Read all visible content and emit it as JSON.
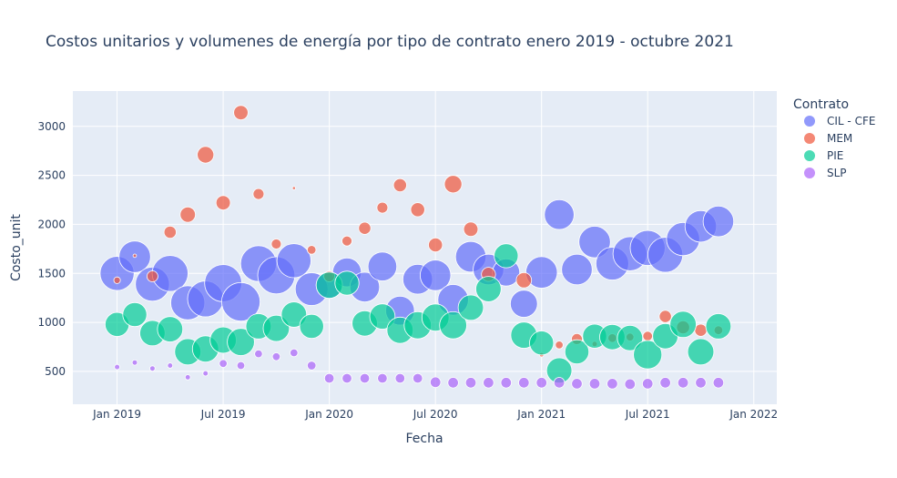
{
  "chart_data": {
    "type": "scatter",
    "title": "Costos unitarios y volumenes de energía por tipo de contrato enero 2019 - octubre 2021",
    "xlabel": "Fecha",
    "ylabel": "Costo_unit",
    "legend_title": "Contrato",
    "legend_position": "top-right",
    "grid": true,
    "x_start": "2019-01",
    "xlim_months": [
      -2.5,
      37.3
    ],
    "ylim": [
      165,
      3360
    ],
    "x_ticks": [
      {
        "label": "Jan 2019",
        "month": 0
      },
      {
        "label": "Jul 2019",
        "month": 6
      },
      {
        "label": "Jan 2020",
        "month": 12
      },
      {
        "label": "Jul 2020",
        "month": 18
      },
      {
        "label": "Jan 2021",
        "month": 24
      },
      {
        "label": "Jul 2021",
        "month": 30
      },
      {
        "label": "Jan 2022",
        "month": 36
      }
    ],
    "y_ticks": [
      500,
      1000,
      1500,
      2000,
      2500,
      3000
    ],
    "y_tick_labels": [
      "500",
      "1000",
      "1500",
      "2000",
      "2500",
      "3000"
    ],
    "size_note": "bubble size = volume (relative 0-1)",
    "series": [
      {
        "name": "CIL - CFE",
        "color": "#636efa",
        "months": [
          0,
          1,
          2,
          3,
          4,
          5,
          6,
          7,
          8,
          9,
          10,
          11,
          12,
          13,
          14,
          15,
          16,
          17,
          18,
          19,
          20,
          21,
          22,
          23,
          24,
          25,
          26,
          27,
          28,
          29,
          30,
          31,
          32,
          33,
          34
        ],
        "values": [
          1500,
          1670,
          1390,
          1500,
          1200,
          1240,
          1400,
          1210,
          1600,
          1480,
          1630,
          1340,
          1380,
          1510,
          1360,
          1570,
          1120,
          1440,
          1480,
          1230,
          1670,
          1540,
          1510,
          1190,
          1510,
          2100,
          1540,
          1820,
          1600,
          1700,
          1760,
          1690,
          1850,
          1980,
          2030
        ],
        "sizes": [
          0.78,
          0.72,
          0.78,
          0.82,
          0.78,
          0.82,
          0.85,
          0.88,
          0.82,
          0.85,
          0.78,
          0.75,
          0.6,
          0.66,
          0.68,
          0.66,
          0.66,
          0.68,
          0.7,
          0.7,
          0.7,
          0.7,
          0.62,
          0.62,
          0.72,
          0.68,
          0.7,
          0.72,
          0.75,
          0.78,
          0.8,
          0.8,
          0.76,
          0.72,
          0.7
        ]
      },
      {
        "name": "MEM",
        "color": "#ef553b",
        "months": [
          0,
          1,
          2,
          3,
          4,
          5,
          6,
          7,
          8,
          9,
          10,
          11,
          12,
          13,
          14,
          15,
          16,
          17,
          18,
          19,
          20,
          21,
          23,
          24,
          25,
          26,
          27,
          28,
          29,
          30,
          31,
          32,
          33,
          34
        ],
        "values": [
          1430,
          1680,
          1470,
          1920,
          2100,
          2710,
          2220,
          3140,
          2310,
          1800,
          2370,
          1740,
          1470,
          1830,
          1960,
          2170,
          2400,
          2150,
          1790,
          2410,
          1950,
          1490,
          1430,
          670,
          770,
          830,
          780,
          840,
          850,
          860,
          1060,
          950,
          920,
          920
        ],
        "sizes": [
          0.15,
          0.08,
          0.25,
          0.28,
          0.35,
          0.38,
          0.33,
          0.33,
          0.25,
          0.23,
          0.07,
          0.2,
          0.25,
          0.23,
          0.28,
          0.25,
          0.3,
          0.32,
          0.32,
          0.4,
          0.33,
          0.32,
          0.35,
          0.1,
          0.18,
          0.25,
          0.12,
          0.2,
          0.18,
          0.22,
          0.28,
          0.3,
          0.28,
          0.2
        ],
        "inner_dots": true
      },
      {
        "name": "PIE",
        "color": "#00cc96",
        "months": [
          0,
          1,
          2,
          3,
          4,
          5,
          6,
          7,
          8,
          9,
          10,
          11,
          12,
          13,
          14,
          15,
          16,
          17,
          18,
          19,
          20,
          21,
          22,
          23,
          24,
          25,
          26,
          27,
          28,
          29,
          30,
          31,
          32,
          33,
          34
        ],
        "values": [
          980,
          1080,
          890,
          930,
          700,
          730,
          820,
          800,
          960,
          940,
          1080,
          960,
          1380,
          1400,
          990,
          1060,
          920,
          970,
          1050,
          970,
          1150,
          1340,
          1680,
          870,
          790,
          510,
          700,
          860,
          850,
          840,
          670,
          860,
          980,
          700,
          960
        ],
        "sizes": [
          0.55,
          0.55,
          0.58,
          0.58,
          0.6,
          0.6,
          0.6,
          0.62,
          0.58,
          0.6,
          0.58,
          0.55,
          0.6,
          0.55,
          0.58,
          0.58,
          0.6,
          0.62,
          0.62,
          0.62,
          0.58,
          0.58,
          0.55,
          0.6,
          0.55,
          0.58,
          0.55,
          0.55,
          0.58,
          0.58,
          0.65,
          0.58,
          0.6,
          0.6,
          0.58
        ]
      },
      {
        "name": "SLP",
        "color": "#ab63fa",
        "months": [
          0,
          1,
          2,
          3,
          4,
          5,
          6,
          7,
          8,
          9,
          10,
          11,
          12,
          13,
          14,
          15,
          16,
          17,
          18,
          19,
          20,
          21,
          22,
          23,
          24,
          25,
          26,
          27,
          28,
          29,
          30,
          31,
          32,
          33,
          34
        ],
        "values": [
          545,
          590,
          530,
          560,
          440,
          480,
          580,
          560,
          680,
          650,
          690,
          560,
          430,
          430,
          430,
          430,
          430,
          430,
          390,
          385,
          385,
          385,
          385,
          385,
          385,
          385,
          375,
          375,
          375,
          370,
          375,
          385,
          385,
          385,
          385
        ],
        "sizes": [
          0.12,
          0.12,
          0.12,
          0.12,
          0.12,
          0.12,
          0.18,
          0.18,
          0.18,
          0.18,
          0.18,
          0.2,
          0.22,
          0.22,
          0.22,
          0.22,
          0.22,
          0.22,
          0.24,
          0.24,
          0.24,
          0.24,
          0.24,
          0.24,
          0.24,
          0.24,
          0.24,
          0.24,
          0.24,
          0.24,
          0.24,
          0.24,
          0.24,
          0.24,
          0.24
        ]
      }
    ]
  }
}
